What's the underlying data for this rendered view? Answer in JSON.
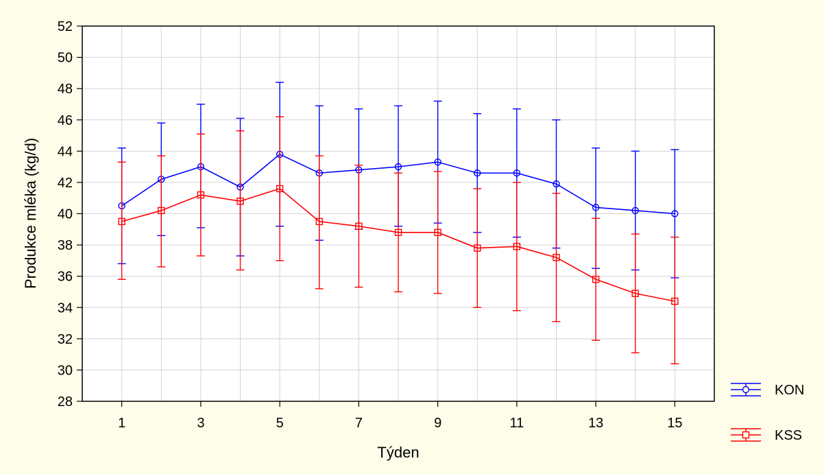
{
  "chart_data": {
    "type": "line",
    "title": "",
    "xlabel": "Týden",
    "ylabel": "Produkce mléka (kg/d)",
    "xlim": [
      0,
      16
    ],
    "ylim": [
      28,
      52
    ],
    "x_ticks": [
      "1",
      "3",
      "5",
      "7",
      "9",
      "11",
      "13",
      "15"
    ],
    "y_ticks": [
      "28",
      "30",
      "32",
      "34",
      "36",
      "38",
      "40",
      "42",
      "44",
      "46",
      "48",
      "50",
      "52"
    ],
    "grid": true,
    "legend_position": "bottom-right",
    "x": [
      1,
      2,
      3,
      4,
      5,
      6,
      7,
      8,
      9,
      10,
      11,
      12,
      13,
      14,
      15
    ],
    "series": [
      {
        "name": "KON",
        "color": "#0000ff",
        "marker": "circle",
        "values": [
          40.5,
          42.2,
          43.0,
          41.7,
          43.8,
          42.6,
          42.8,
          43.0,
          43.3,
          42.6,
          42.6,
          41.9,
          40.4,
          40.2,
          40.0
        ],
        "error_low": [
          36.8,
          38.6,
          39.1,
          37.3,
          39.2,
          38.3,
          39.0,
          39.2,
          39.4,
          38.8,
          38.5,
          37.8,
          36.5,
          36.4,
          35.9
        ],
        "error_high": [
          44.2,
          45.8,
          47.0,
          46.1,
          48.4,
          46.9,
          46.7,
          46.9,
          47.2,
          46.4,
          46.7,
          46.0,
          44.2,
          44.0,
          44.1
        ]
      },
      {
        "name": "KSS",
        "color": "#ff0000",
        "marker": "square",
        "values": [
          39.5,
          40.2,
          41.2,
          40.8,
          41.6,
          39.5,
          39.2,
          38.8,
          38.8,
          37.8,
          37.9,
          37.2,
          35.8,
          34.9,
          34.4
        ],
        "error_low": [
          35.8,
          36.6,
          37.3,
          36.4,
          37.0,
          35.2,
          35.3,
          35.0,
          34.9,
          34.0,
          33.8,
          33.1,
          31.9,
          31.1,
          30.4
        ],
        "error_high": [
          43.3,
          43.7,
          45.1,
          45.3,
          46.2,
          43.7,
          43.1,
          42.6,
          42.7,
          41.6,
          42.0,
          41.3,
          39.7,
          38.7,
          38.5
        ]
      }
    ]
  }
}
